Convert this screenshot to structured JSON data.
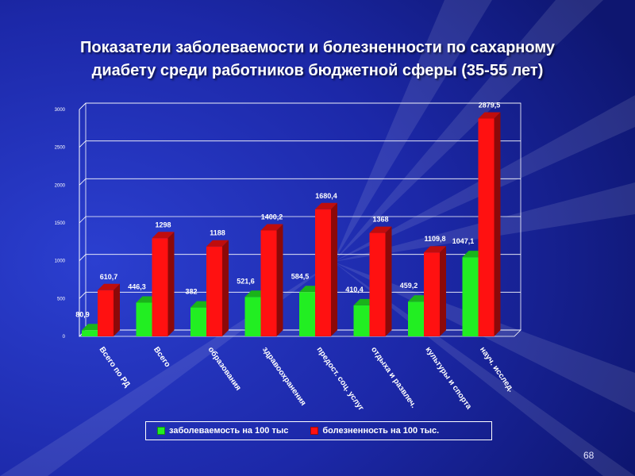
{
  "slide": {
    "title_line1": "Показатели заболеваемости и болезненности по сахарному",
    "title_line2": "диабету среди работников бюджетной сферы (35-55 лет)",
    "page_number": "68"
  },
  "colors": {
    "green": "#22ee22",
    "red": "#ff1111",
    "background": "#1a2a9a"
  },
  "chart_data": {
    "type": "bar",
    "categories": [
      "Всего по РД",
      "Всего",
      "образования",
      "здравоохранения",
      "предост. соц. услуг",
      "отдыха и развлеч.",
      "культуры и спорта",
      "науч. исслед."
    ],
    "series": [
      {
        "name": "заболеваемость на 100 тыс",
        "values": [
          80.9,
          446.3,
          382,
          521.6,
          584.5,
          410.4,
          459.2,
          1047.1
        ],
        "labels": [
          "80,9",
          "446,3",
          "382",
          "521,6",
          "584,5",
          "410,4",
          "459,2",
          "1047,1"
        ]
      },
      {
        "name": "болезненность на 100 тыс.",
        "values": [
          610.7,
          1298,
          1188,
          1400.2,
          1680.4,
          1368,
          1109.8,
          2879.5
        ],
        "labels": [
          "610,7",
          "1298",
          "1188",
          "1400,2",
          "1680,4",
          "1368",
          "1109,8",
          "2879,5"
        ]
      }
    ],
    "ylim": [
      0,
      3000
    ],
    "yticks": [
      "0",
      "500",
      "1000",
      "1500",
      "2000",
      "2500",
      "3000"
    ],
    "grid": true,
    "legend_position": "bottom"
  }
}
